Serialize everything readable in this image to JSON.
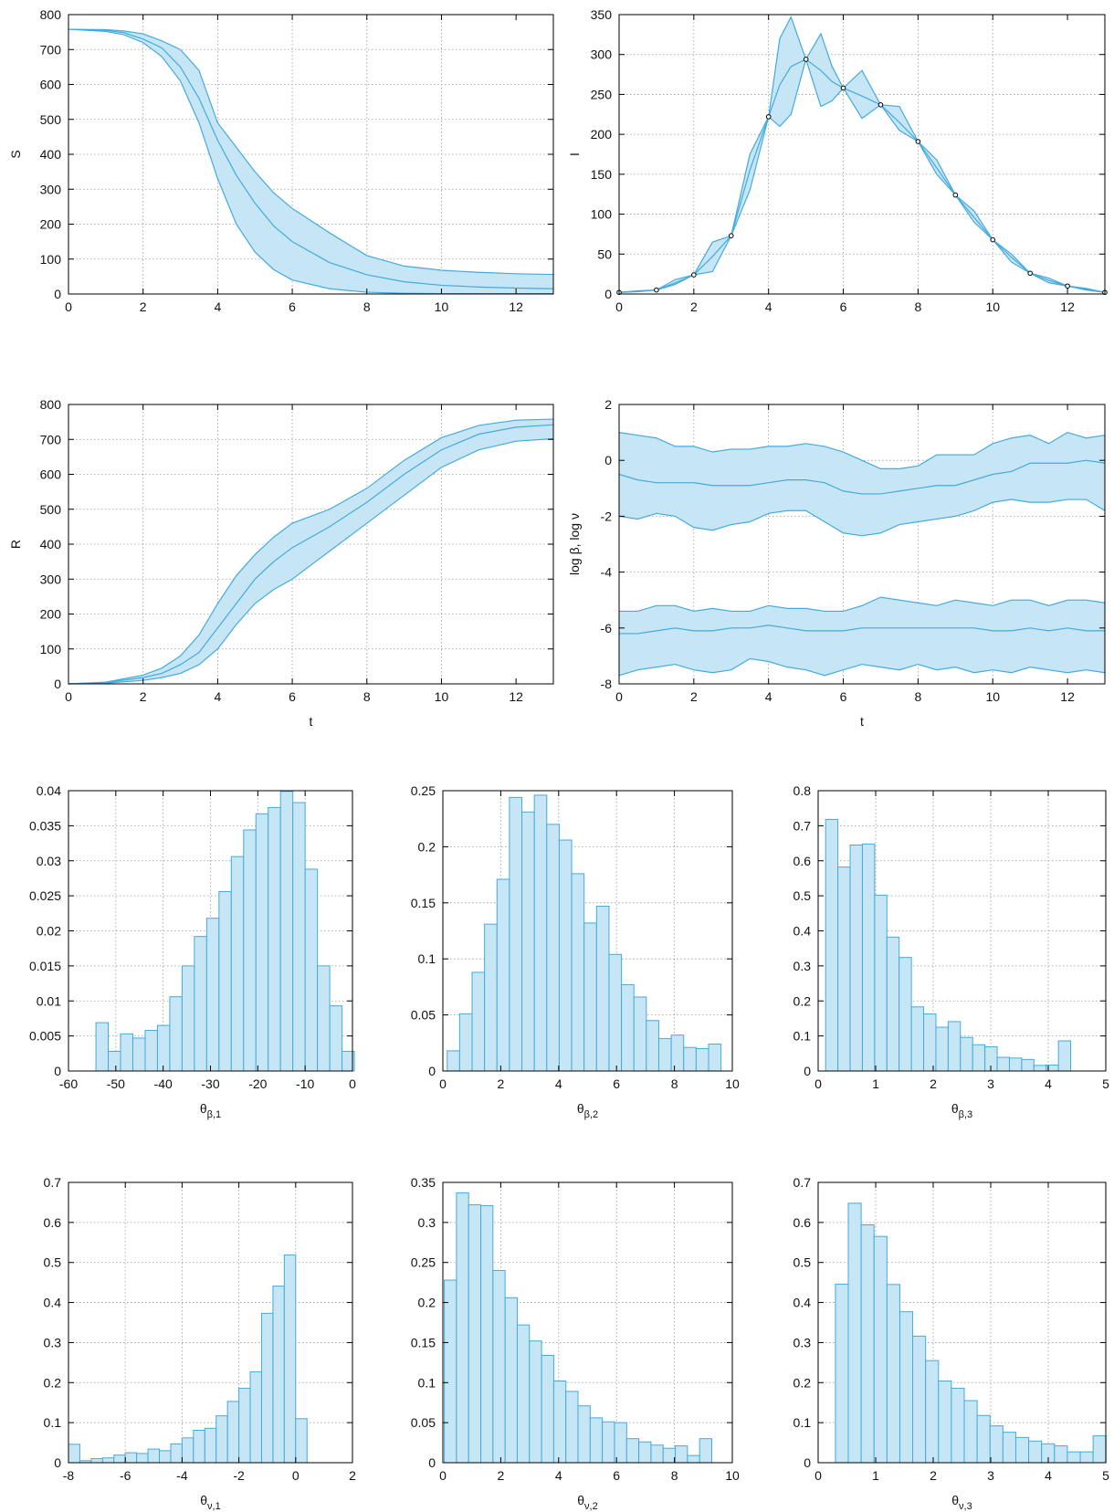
{
  "colors": {
    "band_fill": "#c6e6f6",
    "line": "#44aade",
    "bar_fill": "#c6e6f6",
    "bar_stroke": "#44aade",
    "marker": "#000000"
  },
  "chart_data": [
    {
      "id": "S",
      "type": "area",
      "xlabel": "",
      "ylabel": "S",
      "xlim": [
        0,
        13
      ],
      "ylim": [
        0,
        800
      ],
      "xticks": [
        0,
        2,
        4,
        6,
        8,
        10,
        12
      ],
      "yticks": [
        0,
        100,
        200,
        300,
        400,
        500,
        600,
        700,
        800
      ],
      "grid": true,
      "bands": [
        {
          "x": [
            0,
            1,
            1.5,
            2,
            2.5,
            3,
            3.5,
            4,
            4.5,
            5,
            5.5,
            6,
            7,
            8,
            9,
            10,
            11,
            12,
            13
          ],
          "lower": [
            758,
            752,
            742,
            720,
            680,
            610,
            490,
            330,
            200,
            120,
            70,
            40,
            15,
            5,
            2,
            1,
            1,
            1,
            1
          ],
          "mid": [
            758,
            755,
            748,
            730,
            705,
            650,
            560,
            440,
            340,
            260,
            195,
            150,
            90,
            55,
            35,
            25,
            20,
            17,
            15
          ],
          "upper": [
            758,
            757,
            753,
            745,
            725,
            700,
            640,
            490,
            420,
            350,
            290,
            245,
            175,
            110,
            80,
            68,
            62,
            58,
            56
          ]
        }
      ]
    },
    {
      "id": "I",
      "type": "area",
      "xlabel": "",
      "ylabel": "I",
      "xlim": [
        0,
        13
      ],
      "ylim": [
        0,
        350
      ],
      "xticks": [
        0,
        2,
        4,
        6,
        8,
        10,
        12
      ],
      "yticks": [
        0,
        50,
        100,
        150,
        200,
        250,
        300,
        350
      ],
      "grid": true,
      "bands": [
        {
          "x": [
            0,
            0.5,
            1,
            1.5,
            2,
            2.5,
            3,
            3.5,
            4,
            4.3,
            4.6,
            5,
            5.4,
            5.7,
            6,
            6.5,
            7,
            7.5,
            8,
            8.5,
            9,
            9.5,
            10,
            10.5,
            11,
            11.5,
            12,
            12.5,
            13
          ],
          "lower": [
            2,
            3,
            5,
            12,
            24,
            28,
            73,
            130,
            222,
            210,
            225,
            294,
            235,
            242,
            258,
            220,
            237,
            205,
            191,
            150,
            124,
            90,
            68,
            40,
            26,
            14,
            10,
            5,
            2
          ],
          "mid": [
            2,
            3,
            5,
            14,
            24,
            47,
            73,
            155,
            222,
            262,
            285,
            294,
            280,
            266,
            258,
            248,
            237,
            215,
            191,
            158,
            124,
            96,
            68,
            46,
            26,
            17,
            10,
            6,
            2
          ],
          "upper": [
            2,
            4,
            5,
            18,
            24,
            65,
            73,
            175,
            222,
            320,
            347,
            294,
            326,
            285,
            258,
            280,
            237,
            235,
            191,
            168,
            124,
            104,
            68,
            50,
            26,
            20,
            10,
            7,
            2
          ]
        }
      ],
      "markers": {
        "x": [
          0,
          1,
          2,
          3,
          4,
          5,
          6,
          7,
          8,
          9,
          10,
          11,
          12,
          13
        ],
        "y": [
          2,
          5,
          24,
          73,
          222,
          294,
          258,
          237,
          191,
          124,
          68,
          26,
          10,
          2
        ]
      }
    },
    {
      "id": "R",
      "type": "area",
      "xlabel": "t",
      "ylabel": "R",
      "xlim": [
        0,
        13
      ],
      "ylim": [
        0,
        800
      ],
      "xticks": [
        0,
        2,
        4,
        6,
        8,
        10,
        12
      ],
      "yticks": [
        0,
        100,
        200,
        300,
        400,
        500,
        600,
        700,
        800
      ],
      "grid": true,
      "bands": [
        {
          "x": [
            0,
            1,
            2,
            2.5,
            3,
            3.5,
            4,
            4.5,
            5,
            5.5,
            6,
            6.5,
            7,
            8,
            9,
            10,
            11,
            12,
            13
          ],
          "lower": [
            0,
            2,
            10,
            18,
            30,
            55,
            100,
            170,
            230,
            270,
            300,
            340,
            380,
            460,
            540,
            620,
            670,
            695,
            702
          ],
          "mid": [
            0,
            4,
            18,
            30,
            55,
            90,
            160,
            230,
            300,
            350,
            390,
            420,
            450,
            520,
            600,
            670,
            715,
            735,
            742
          ],
          "upper": [
            0,
            5,
            25,
            45,
            80,
            140,
            230,
            310,
            370,
            420,
            460,
            480,
            500,
            560,
            640,
            705,
            740,
            755,
            758
          ]
        }
      ]
    },
    {
      "id": "log-beta-nu",
      "type": "area",
      "xlabel": "t",
      "ylabel": "log β, log ν",
      "xlim": [
        0,
        13
      ],
      "ylim": [
        -8,
        2
      ],
      "xticks": [
        0,
        2,
        4,
        6,
        8,
        10,
        12
      ],
      "yticks": [
        -8,
        -6,
        -4,
        -2,
        0,
        2
      ],
      "grid": true,
      "bands": [
        {
          "x": [
            0,
            0.5,
            1,
            1.5,
            2,
            2.5,
            3,
            3.5,
            4,
            4.5,
            5,
            5.5,
            6,
            6.5,
            7,
            7.5,
            8,
            8.5,
            9,
            9.5,
            10,
            10.5,
            11,
            11.5,
            12,
            12.5,
            13
          ],
          "lower": [
            -2.0,
            -2.1,
            -1.9,
            -2.0,
            -2.4,
            -2.5,
            -2.3,
            -2.2,
            -1.9,
            -1.8,
            -1.8,
            -2.2,
            -2.6,
            -2.7,
            -2.6,
            -2.3,
            -2.2,
            -2.1,
            -2.0,
            -1.8,
            -1.5,
            -1.4,
            -1.5,
            -1.5,
            -1.4,
            -1.4,
            -1.8
          ],
          "mid": [
            -0.5,
            -0.7,
            -0.8,
            -0.8,
            -0.8,
            -0.9,
            -0.9,
            -0.9,
            -0.8,
            -0.7,
            -0.7,
            -0.8,
            -1.1,
            -1.2,
            -1.2,
            -1.1,
            -1.0,
            -0.9,
            -0.9,
            -0.7,
            -0.5,
            -0.4,
            -0.1,
            -0.1,
            -0.1,
            0.0,
            -0.1
          ],
          "upper": [
            1.0,
            0.9,
            0.8,
            0.5,
            0.5,
            0.3,
            0.4,
            0.4,
            0.5,
            0.5,
            0.6,
            0.5,
            0.3,
            0.0,
            -0.3,
            -0.3,
            -0.2,
            0.2,
            0.2,
            0.2,
            0.6,
            0.8,
            0.9,
            0.6,
            1.0,
            0.8,
            0.9
          ]
        },
        {
          "x": [
            0,
            0.5,
            1,
            1.5,
            2,
            2.5,
            3,
            3.5,
            4,
            4.5,
            5,
            5.5,
            6,
            6.5,
            7,
            7.5,
            8,
            8.5,
            9,
            9.5,
            10,
            10.5,
            11,
            11.5,
            12,
            12.5,
            13
          ],
          "lower": [
            -7.7,
            -7.5,
            -7.4,
            -7.3,
            -7.5,
            -7.6,
            -7.5,
            -7.1,
            -7.2,
            -7.4,
            -7.5,
            -7.7,
            -7.5,
            -7.3,
            -7.4,
            -7.5,
            -7.3,
            -7.5,
            -7.4,
            -7.6,
            -7.5,
            -7.6,
            -7.4,
            -7.5,
            -7.6,
            -7.5,
            -7.6
          ],
          "mid": [
            -6.2,
            -6.2,
            -6.1,
            -6.0,
            -6.1,
            -6.1,
            -6.0,
            -6.0,
            -5.9,
            -6.0,
            -6.1,
            -6.1,
            -6.1,
            -6.0,
            -6.0,
            -6.0,
            -6.0,
            -6.0,
            -6.0,
            -6.0,
            -6.1,
            -6.1,
            -6.0,
            -6.1,
            -6.0,
            -6.1,
            -6.1
          ],
          "upper": [
            -5.4,
            -5.4,
            -5.2,
            -5.2,
            -5.4,
            -5.3,
            -5.4,
            -5.4,
            -5.2,
            -5.3,
            -5.3,
            -5.4,
            -5.4,
            -5.2,
            -4.9,
            -5.0,
            -5.1,
            -5.2,
            -5.0,
            -5.1,
            -5.2,
            -5.0,
            -5.0,
            -5.2,
            -5.0,
            -5.0,
            -5.1
          ]
        }
      ]
    },
    {
      "id": "theta-beta-1",
      "type": "bar",
      "xlabel": "θ",
      "xlabel_sub": "β,1",
      "ylabel": "",
      "xlim": [
        -60,
        0
      ],
      "ylim": [
        0,
        0.04
      ],
      "xticks": [
        -60,
        -50,
        -40,
        -30,
        -20,
        -10,
        0
      ],
      "yticks": [
        0,
        0.005,
        0.01,
        0.015,
        0.02,
        0.025,
        0.03,
        0.035,
        0.04
      ],
      "grid": true,
      "bin_start": -54.2,
      "bin_width": 2.6,
      "values": [
        0.0069,
        0.0028,
        0.0053,
        0.0047,
        0.0058,
        0.0065,
        0.0106,
        0.015,
        0.0192,
        0.0218,
        0.0256,
        0.0306,
        0.0344,
        0.0367,
        0.0376,
        0.0399,
        0.0383,
        0.0288,
        0.015,
        0.0093,
        0.0028
      ]
    },
    {
      "id": "theta-beta-2",
      "type": "bar",
      "xlabel": "θ",
      "xlabel_sub": "β,2",
      "ylabel": "",
      "xlim": [
        0,
        10
      ],
      "ylim": [
        0,
        0.25
      ],
      "xticks": [
        0,
        2,
        4,
        6,
        8,
        10
      ],
      "yticks": [
        0,
        0.05,
        0.1,
        0.15,
        0.2,
        0.25
      ],
      "grid": true,
      "bin_start": 0.15,
      "bin_width": 0.43,
      "values": [
        0.018,
        0.051,
        0.088,
        0.131,
        0.171,
        0.244,
        0.231,
        0.246,
        0.22,
        0.206,
        0.176,
        0.132,
        0.147,
        0.104,
        0.077,
        0.066,
        0.045,
        0.029,
        0.032,
        0.021,
        0.02,
        0.024
      ]
    },
    {
      "id": "theta-beta-3",
      "type": "bar",
      "xlabel": "θ",
      "xlabel_sub": "β,3",
      "ylabel": "",
      "xlim": [
        0,
        5
      ],
      "ylim": [
        0,
        0.8
      ],
      "xticks": [
        0,
        1,
        2,
        3,
        4,
        5
      ],
      "yticks": [
        0,
        0.1,
        0.2,
        0.3,
        0.4,
        0.5,
        0.6,
        0.7,
        0.8
      ],
      "grid": true,
      "bin_start": 0.13,
      "bin_width": 0.213,
      "values": [
        0.718,
        0.582,
        0.645,
        0.648,
        0.502,
        0.382,
        0.324,
        0.183,
        0.163,
        0.125,
        0.141,
        0.096,
        0.075,
        0.069,
        0.039,
        0.037,
        0.033,
        0.016,
        0.017,
        0.086
      ]
    },
    {
      "id": "theta-nu-1",
      "type": "bar",
      "xlabel": "θ",
      "xlabel_sub": "ν,1",
      "ylabel": "",
      "xlim": [
        -8,
        2
      ],
      "ylim": [
        0,
        0.7
      ],
      "xticks": [
        -8,
        -6,
        -4,
        -2,
        0,
        2
      ],
      "yticks": [
        0,
        0.1,
        0.2,
        0.3,
        0.4,
        0.5,
        0.6,
        0.7
      ],
      "grid": true,
      "bin_start": -8.0,
      "bin_width": 0.4,
      "values": [
        0.046,
        0.005,
        0.01,
        0.012,
        0.019,
        0.025,
        0.023,
        0.034,
        0.03,
        0.047,
        0.062,
        0.081,
        0.086,
        0.117,
        0.153,
        0.186,
        0.227,
        0.373,
        0.441,
        0.519,
        0.11
      ]
    },
    {
      "id": "theta-nu-2",
      "type": "bar",
      "xlabel": "θ",
      "xlabel_sub": "ν,2",
      "ylabel": "",
      "xlim": [
        0,
        10
      ],
      "ylim": [
        0,
        0.35
      ],
      "xticks": [
        0,
        2,
        4,
        6,
        8,
        10
      ],
      "yticks": [
        0,
        0.05,
        0.1,
        0.15,
        0.2,
        0.25,
        0.3,
        0.35
      ],
      "grid": true,
      "bin_start": 0.05,
      "bin_width": 0.42,
      "values": [
        0.228,
        0.337,
        0.322,
        0.321,
        0.24,
        0.206,
        0.172,
        0.152,
        0.134,
        0.102,
        0.089,
        0.071,
        0.056,
        0.051,
        0.05,
        0.03,
        0.026,
        0.022,
        0.018,
        0.021,
        0.009,
        0.03
      ]
    },
    {
      "id": "theta-nu-3",
      "type": "bar",
      "xlabel": "θ",
      "xlabel_sub": "ν,3",
      "ylabel": "",
      "xlim": [
        0,
        5
      ],
      "ylim": [
        0,
        0.7
      ],
      "xticks": [
        0,
        1,
        2,
        3,
        4,
        5
      ],
      "yticks": [
        0,
        0.1,
        0.2,
        0.3,
        0.4,
        0.5,
        0.6,
        0.7
      ],
      "grid": true,
      "bin_start": 0.3,
      "bin_width": 0.224,
      "values": [
        0.446,
        0.648,
        0.594,
        0.565,
        0.445,
        0.377,
        0.316,
        0.255,
        0.204,
        0.186,
        0.155,
        0.118,
        0.092,
        0.076,
        0.063,
        0.054,
        0.047,
        0.042,
        0.027,
        0.027,
        0.067
      ]
    }
  ]
}
